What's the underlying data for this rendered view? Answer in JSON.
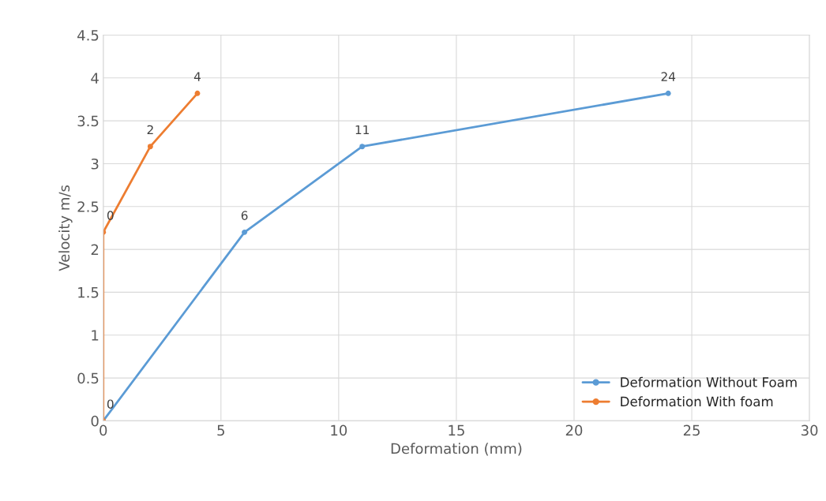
{
  "chart_data": {
    "type": "line",
    "xlabel": "Deformation (mm)",
    "ylabel": "Velocity m/s",
    "series": [
      {
        "name": "Deformation Without Foam",
        "color": "#5b9bd5",
        "x": [
          0,
          6,
          11,
          24
        ],
        "values": [
          0,
          2.2,
          3.2,
          3.82
        ]
      },
      {
        "name": "Deformation With foam",
        "color": "#ed7d31",
        "x": [
          0,
          0,
          2,
          4
        ],
        "values": [
          0,
          2.2,
          3.2,
          3.82
        ]
      }
    ],
    "annotations": [
      {
        "text": "0",
        "x": 0,
        "y": 0
      },
      {
        "text": "6",
        "x": 6,
        "y": 2.2
      },
      {
        "text": "11",
        "x": 11,
        "y": 3.2
      },
      {
        "text": "24",
        "x": 24,
        "y": 3.82
      },
      {
        "text": "0",
        "x": 0,
        "y": 2.2
      },
      {
        "text": "2",
        "x": 2,
        "y": 3.2
      },
      {
        "text": "4",
        "x": 4,
        "y": 3.82
      }
    ],
    "xlim": [
      0,
      30
    ],
    "xticks": [
      0,
      5,
      10,
      15,
      20,
      25,
      30
    ],
    "ylim": [
      0,
      4.5
    ],
    "yticks": [
      0,
      0.5,
      1,
      1.5,
      2,
      2.5,
      3,
      3.5,
      4,
      4.5
    ],
    "grid": true,
    "legend": "bottom right",
    "marker": "circle",
    "line_style": "solid"
  }
}
